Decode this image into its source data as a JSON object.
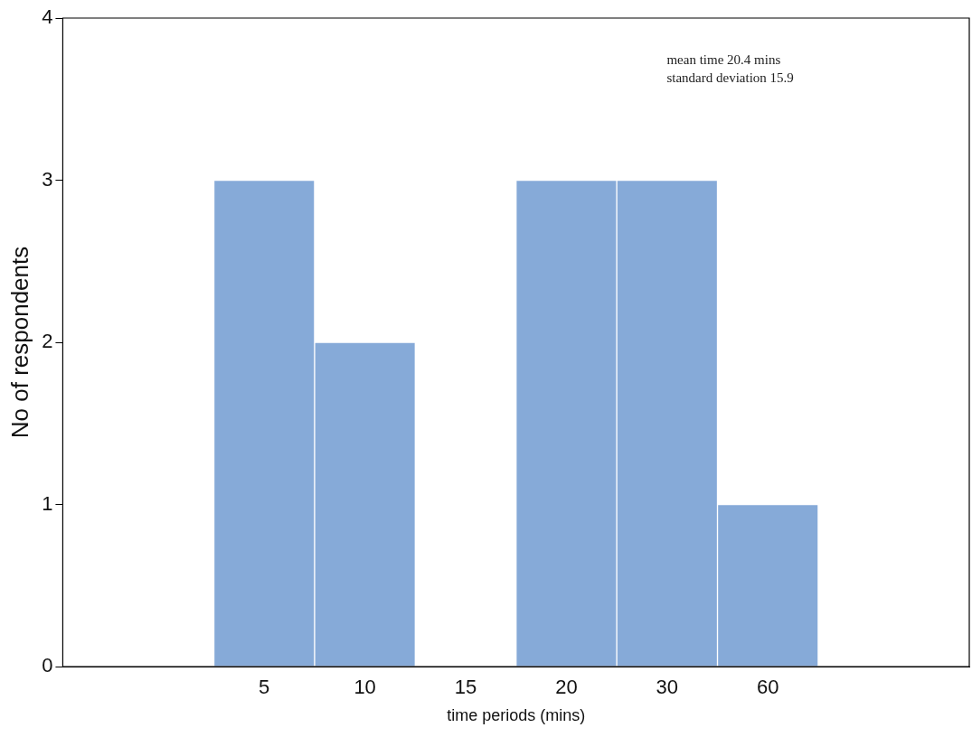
{
  "chart_data": {
    "type": "bar",
    "xlabel": "time periods (mins)",
    "ylabel": "No of respondents",
    "categories": [
      null,
      null,
      "5",
      "10",
      "15",
      "20",
      "30",
      "60",
      null,
      null
    ],
    "values": [
      0,
      0,
      3,
      2,
      0,
      3,
      3,
      1,
      0,
      0
    ],
    "color": "#86aad8",
    "ylim": [
      0,
      4
    ],
    "yticks": [
      0,
      1,
      2,
      3,
      4
    ],
    "grid": false,
    "legend": false,
    "annotations": [
      "mean time 20.4 mins",
      "standard deviation 15.9"
    ]
  }
}
